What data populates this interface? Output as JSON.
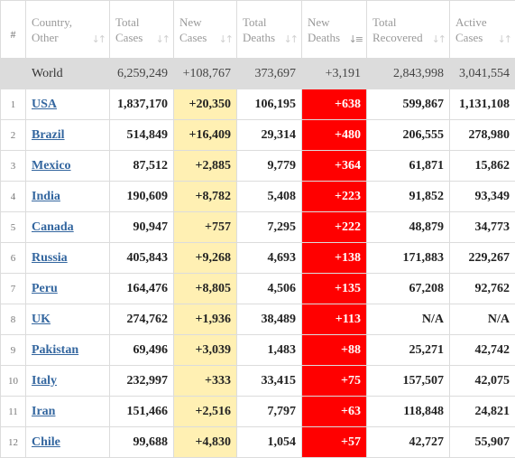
{
  "headers": {
    "index": "#",
    "country": [
      "Country,",
      "Other"
    ],
    "total_cases": [
      "Total",
      "Cases"
    ],
    "new_cases": [
      "New",
      "Cases"
    ],
    "total_deaths": [
      "Total",
      "Deaths"
    ],
    "new_deaths": [
      "New",
      "Deaths"
    ],
    "total_recovered": [
      "Total",
      "Recovered"
    ],
    "active_cases": [
      "Active",
      "Cases"
    ]
  },
  "sort_icons": {
    "unsorted": "sort-arrows-icon",
    "active": "sort-desc-icon"
  },
  "world": {
    "country": "World",
    "total_cases": "6,259,249",
    "new_cases": "+108,767",
    "total_deaths": "373,697",
    "new_deaths": "+3,191",
    "total_recovered": "2,843,998",
    "active_cases": "3,041,554"
  },
  "rows": [
    {
      "index": "1",
      "country": "USA",
      "total_cases": "1,837,170",
      "new_cases": "+20,350",
      "total_deaths": "106,195",
      "new_deaths": "+638",
      "total_recovered": "599,867",
      "active_cases": "1,131,108"
    },
    {
      "index": "2",
      "country": "Brazil",
      "total_cases": "514,849",
      "new_cases": "+16,409",
      "total_deaths": "29,314",
      "new_deaths": "+480",
      "total_recovered": "206,555",
      "active_cases": "278,980"
    },
    {
      "index": "3",
      "country": "Mexico",
      "total_cases": "87,512",
      "new_cases": "+2,885",
      "total_deaths": "9,779",
      "new_deaths": "+364",
      "total_recovered": "61,871",
      "active_cases": "15,862"
    },
    {
      "index": "4",
      "country": "India",
      "total_cases": "190,609",
      "new_cases": "+8,782",
      "total_deaths": "5,408",
      "new_deaths": "+223",
      "total_recovered": "91,852",
      "active_cases": "93,349"
    },
    {
      "index": "5",
      "country": "Canada",
      "total_cases": "90,947",
      "new_cases": "+757",
      "total_deaths": "7,295",
      "new_deaths": "+222",
      "total_recovered": "48,879",
      "active_cases": "34,773"
    },
    {
      "index": "6",
      "country": "Russia",
      "total_cases": "405,843",
      "new_cases": "+9,268",
      "total_deaths": "4,693",
      "new_deaths": "+138",
      "total_recovered": "171,883",
      "active_cases": "229,267"
    },
    {
      "index": "7",
      "country": "Peru",
      "total_cases": "164,476",
      "new_cases": "+8,805",
      "total_deaths": "4,506",
      "new_deaths": "+135",
      "total_recovered": "67,208",
      "active_cases": "92,762"
    },
    {
      "index": "8",
      "country": "UK",
      "total_cases": "274,762",
      "new_cases": "+1,936",
      "total_deaths": "38,489",
      "new_deaths": "+113",
      "total_recovered": "N/A",
      "active_cases": "N/A"
    },
    {
      "index": "9",
      "country": "Pakistan",
      "total_cases": "69,496",
      "new_cases": "+3,039",
      "total_deaths": "1,483",
      "new_deaths": "+88",
      "total_recovered": "25,271",
      "active_cases": "42,742"
    },
    {
      "index": "10",
      "country": "Italy",
      "total_cases": "232,997",
      "new_cases": "+333",
      "total_deaths": "33,415",
      "new_deaths": "+75",
      "total_recovered": "157,507",
      "active_cases": "42,075"
    },
    {
      "index": "11",
      "country": "Iran",
      "total_cases": "151,466",
      "new_cases": "+2,516",
      "total_deaths": "7,797",
      "new_deaths": "+63",
      "total_recovered": "118,848",
      "active_cases": "24,821"
    },
    {
      "index": "12",
      "country": "Chile",
      "total_cases": "99,688",
      "new_cases": "+4,830",
      "total_deaths": "1,054",
      "new_deaths": "+57",
      "total_recovered": "42,727",
      "active_cases": "55,907"
    }
  ],
  "colors": {
    "new_cases_bg": "#fff0b3",
    "new_deaths_bg": "#ff0000",
    "world_row_bg": "#dcdcdc",
    "link": "#33669f"
  }
}
